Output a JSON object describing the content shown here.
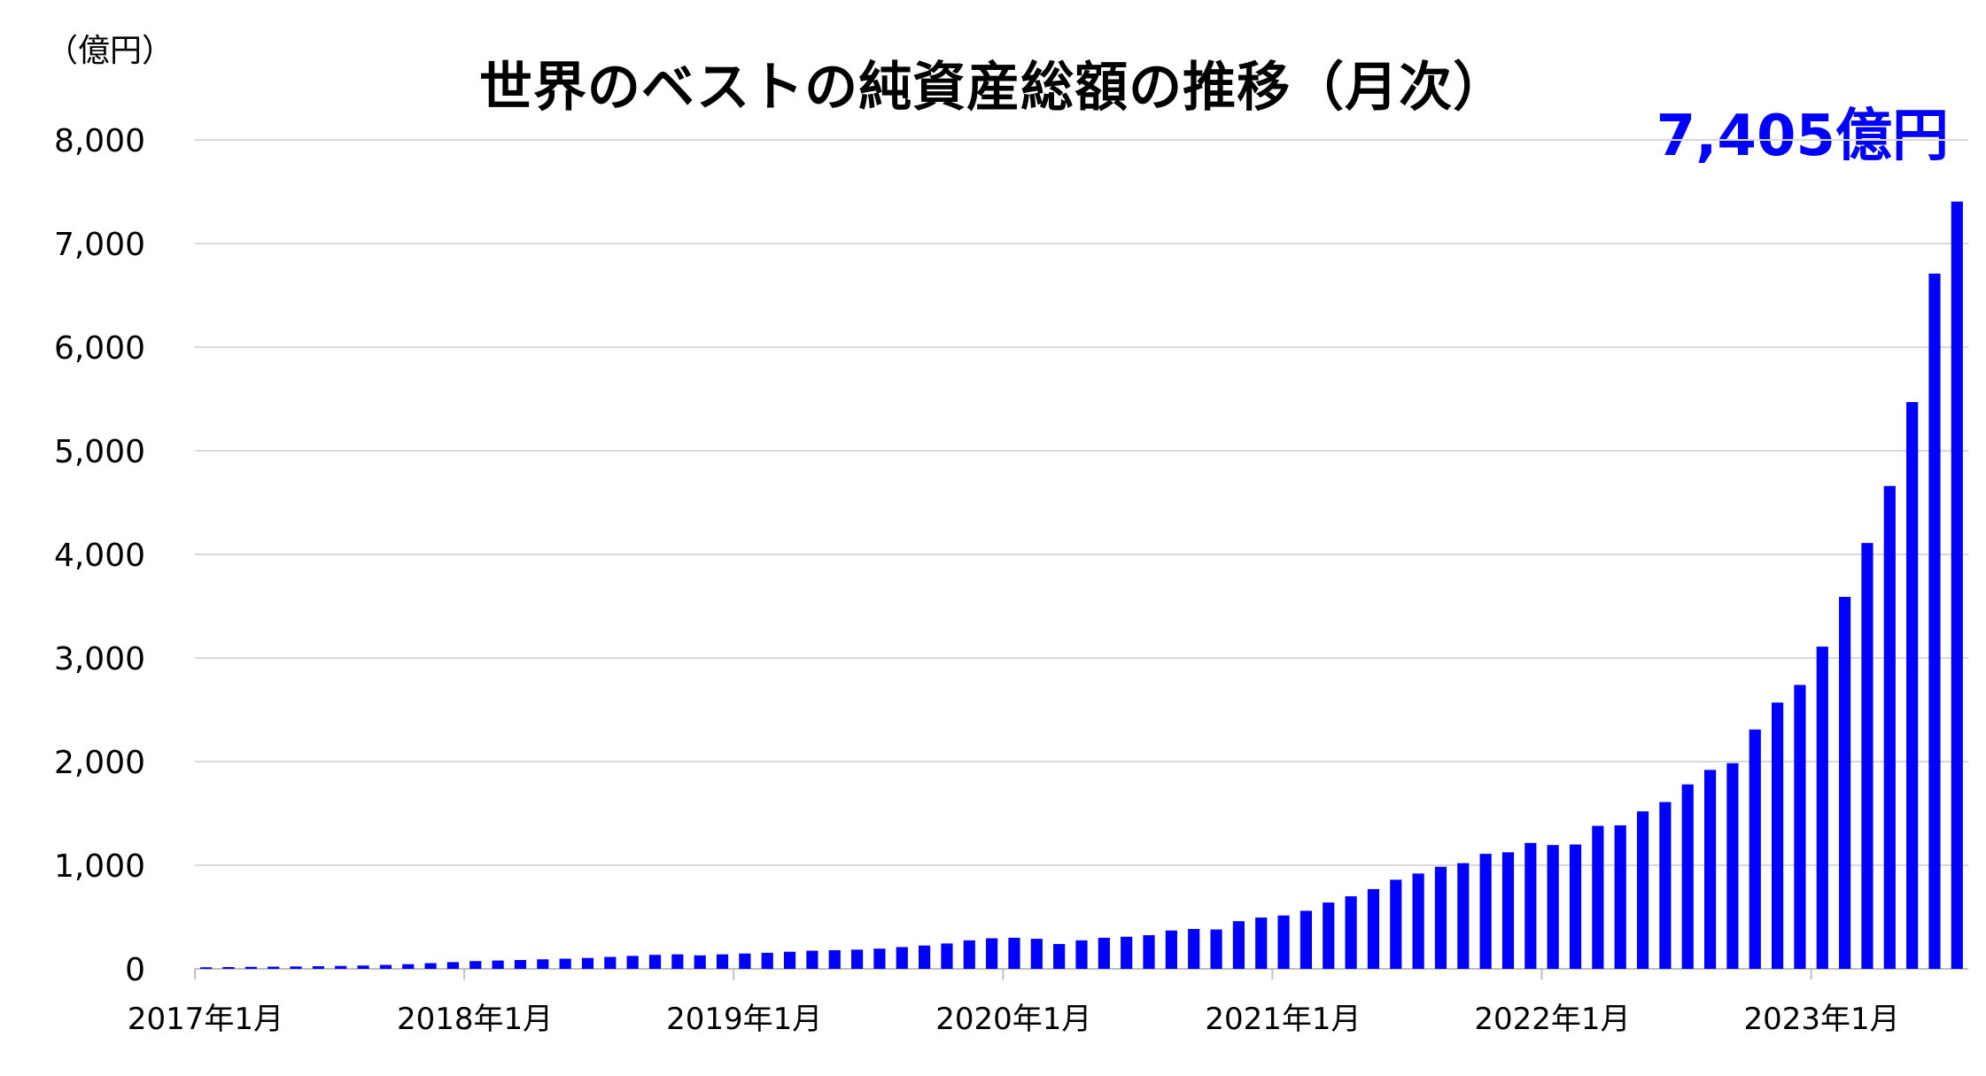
{
  "chart_data": {
    "type": "bar",
    "title": "世界のベストの純資産総額の推移（月次）",
    "unit_label": "（億円）",
    "callout": "7,405億円",
    "xlabel": "",
    "ylabel": "",
    "ylim": [
      0,
      8000
    ],
    "y_ticks": [
      "0",
      "1,000",
      "2,000",
      "3,000",
      "4,000",
      "5,000",
      "6,000",
      "7,000",
      "8,000"
    ],
    "x_tick_labels": [
      "2017年1月",
      "2018年1月",
      "2019年1月",
      "2020年1月",
      "2021年1月",
      "2022年1月",
      "2023年1月"
    ],
    "grid": true,
    "bar_color": "#0000ff",
    "start_month": "2017-01",
    "end_month": "2023-07",
    "values": [
      15,
      17,
      19,
      21,
      23,
      25,
      28,
      32,
      38,
      45,
      55,
      65,
      75,
      80,
      85,
      92,
      98,
      105,
      115,
      125,
      135,
      140,
      130,
      140,
      148,
      155,
      165,
      175,
      180,
      185,
      195,
      210,
      225,
      245,
      275,
      295,
      300,
      290,
      240,
      275,
      300,
      310,
      325,
      370,
      385,
      380,
      460,
      495,
      515,
      560,
      640,
      700,
      770,
      860,
      920,
      985,
      1020,
      1110,
      1125,
      1215,
      1195,
      1200,
      1380,
      1385,
      1520,
      1610,
      1780,
      1920,
      1985,
      2310,
      2570,
      2740,
      3110,
      3590,
      4110,
      4660,
      5470,
      6710,
      7405
    ]
  }
}
